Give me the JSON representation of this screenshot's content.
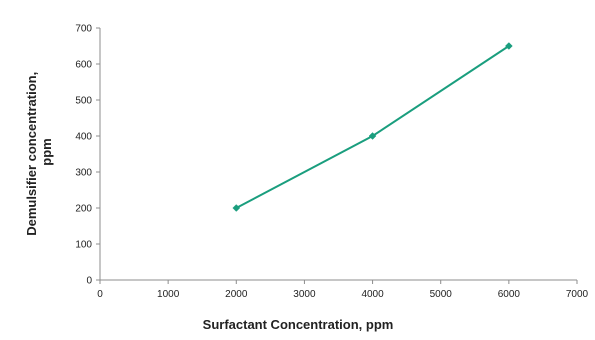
{
  "chart_data": {
    "type": "line",
    "title": "",
    "xlabel": "Surfactant Concentration, ppm",
    "ylabel_lines": [
      "Demulsifier concentration,",
      "ppm"
    ],
    "xlim": [
      0,
      7000
    ],
    "ylim": [
      0,
      700
    ],
    "x_ticks": [
      0,
      1000,
      2000,
      3000,
      4000,
      5000,
      6000,
      7000
    ],
    "y_ticks": [
      0,
      100,
      200,
      300,
      400,
      500,
      600,
      700
    ],
    "grid": false,
    "legend": "none",
    "series": [
      {
        "color": "#1a9e7e",
        "marker": "diamond",
        "x": [
          2000,
          4000,
          6000
        ],
        "y": [
          200,
          400,
          650
        ]
      }
    ]
  }
}
